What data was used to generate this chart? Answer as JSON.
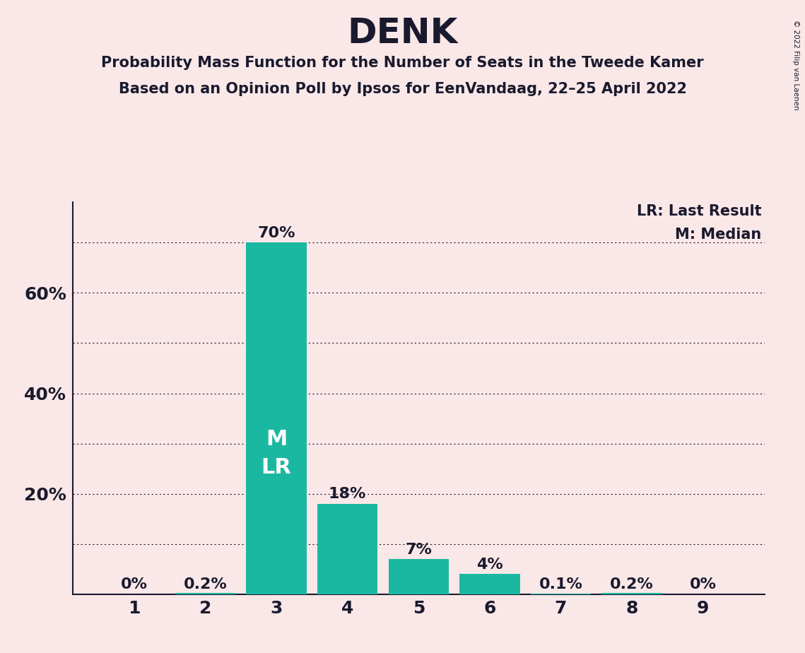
{
  "title": "DENK",
  "subtitle_line1": "Probability Mass Function for the Number of Seats in the Tweede Kamer",
  "subtitle_line2": "Based on an Opinion Poll by Ipsos for EenVandaag, 22–25 April 2022",
  "copyright": "© 2022 Filip van Laenen",
  "categories": [
    1,
    2,
    3,
    4,
    5,
    6,
    7,
    8,
    9
  ],
  "values": [
    0.0,
    0.002,
    0.7,
    0.18,
    0.07,
    0.04,
    0.001,
    0.002,
    0.0
  ],
  "bar_labels": [
    "0%",
    "0.2%",
    "70%",
    "18%",
    "7%",
    "4%",
    "0.1%",
    "0.2%",
    "0%"
  ],
  "bar_color": "#1ab8a0",
  "median_seat": 3,
  "last_result_seat": 3,
  "background_color": "#fae8e8",
  "text_color": "#1a1a2e",
  "ylim_max": 0.78,
  "ytick_gridlines": [
    0.1,
    0.2,
    0.3,
    0.4,
    0.5,
    0.6,
    0.7
  ],
  "ytick_labels_positions": [
    0.2,
    0.4,
    0.6
  ],
  "ytick_labels_texts": [
    "20%",
    "40%",
    "60%"
  ],
  "legend_lr": "LR: Last Result",
  "legend_m": "M: Median",
  "title_fontsize": 36,
  "subtitle_fontsize": 15,
  "bar_label_fontsize": 16,
  "tick_fontsize": 18,
  "legend_fontsize": 15,
  "ml_fontsize": 22
}
